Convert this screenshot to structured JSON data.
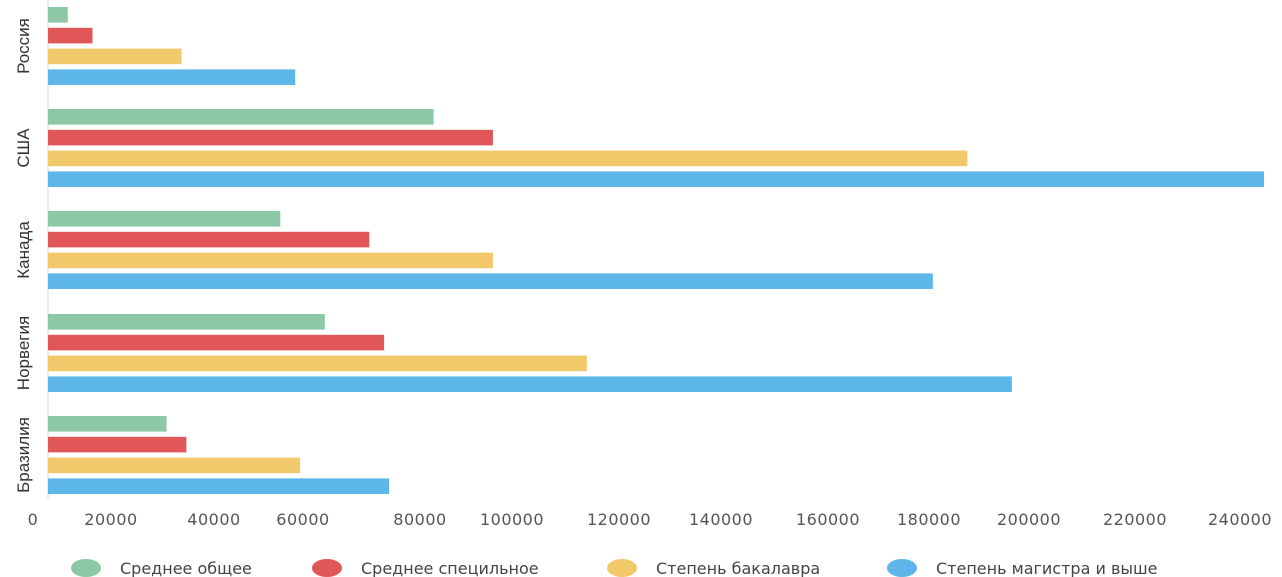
{
  "chart_data": {
    "type": "bar",
    "orientation": "horizontal",
    "categories": [
      "Россия",
      "США",
      "Канада",
      "Норвегия",
      "Бразилия"
    ],
    "series": [
      {
        "name": "Среднее общее",
        "color": "#8cc7a6",
        "values": [
          4000,
          78000,
          47000,
          56000,
          24000
        ]
      },
      {
        "name": "Среднее специльное",
        "color": "#e15759",
        "values": [
          9000,
          90000,
          65000,
          68000,
          28000
        ]
      },
      {
        "name": "Степень бакалавра",
        "color": "#f2c96a",
        "values": [
          27000,
          186000,
          90000,
          109000,
          51000
        ]
      },
      {
        "name": "Степень магистра и выше",
        "color": "#5cb7e8",
        "values": [
          50000,
          246000,
          179000,
          195000,
          69000
        ]
      }
    ],
    "xlim": [
      0,
      246000
    ],
    "xticks": [
      "0",
      "20000",
      "40000",
      "60000",
      "80000",
      "100000",
      "120000",
      "140000",
      "160000",
      "180000",
      "200000",
      "220000",
      "240000"
    ],
    "grid": false,
    "legend_position": "bottom"
  }
}
